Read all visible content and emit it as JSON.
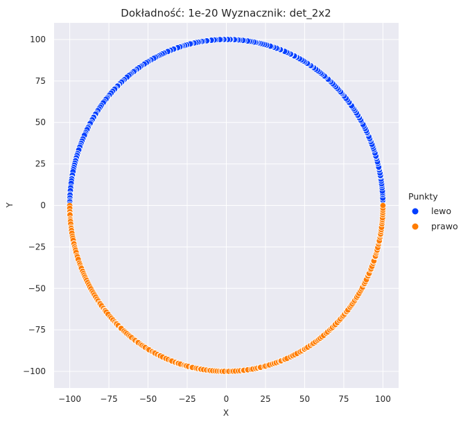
{
  "chart_data": {
    "type": "scatter",
    "title": "Dokładność: 1e-20  Wyznacznik: det_2x2",
    "xlabel": "X",
    "ylabel": "Y",
    "xlim": [
      -110,
      110
    ],
    "ylim": [
      -110,
      110
    ],
    "xticks": [
      -100,
      -75,
      -50,
      -25,
      0,
      25,
      50,
      75,
      100
    ],
    "yticks": [
      -100,
      -75,
      -50,
      -25,
      0,
      25,
      50,
      75,
      100
    ],
    "xtick_labels": [
      "−100",
      "−75",
      "−50",
      "−25",
      "0",
      "25",
      "50",
      "75",
      "100"
    ],
    "ytick_labels": [
      "−100",
      "−75",
      "−50",
      "−25",
      "0",
      "25",
      "50",
      "75",
      "100"
    ],
    "grid": true,
    "legend": {
      "title": "Punkty",
      "placement": "right",
      "entries": [
        "lewo",
        "prawo"
      ]
    },
    "shape": "circle",
    "center": [
      0,
      0
    ],
    "radius": 100,
    "series": [
      {
        "name": "lewo",
        "color": "#023eff",
        "description_values": "points on the upper arc of the circle, from angle 0° to 180° (y ≥ 0)",
        "angle_range_deg": [
          0,
          180
        ],
        "point_count": 230
      },
      {
        "name": "prawo",
        "color": "#ff7c00",
        "description_values": "points on the lower arc of the circle, from angle 180° to 360° (y ≤ 0)",
        "angle_range_deg": [
          180,
          360
        ],
        "point_count": 230
      }
    ]
  }
}
